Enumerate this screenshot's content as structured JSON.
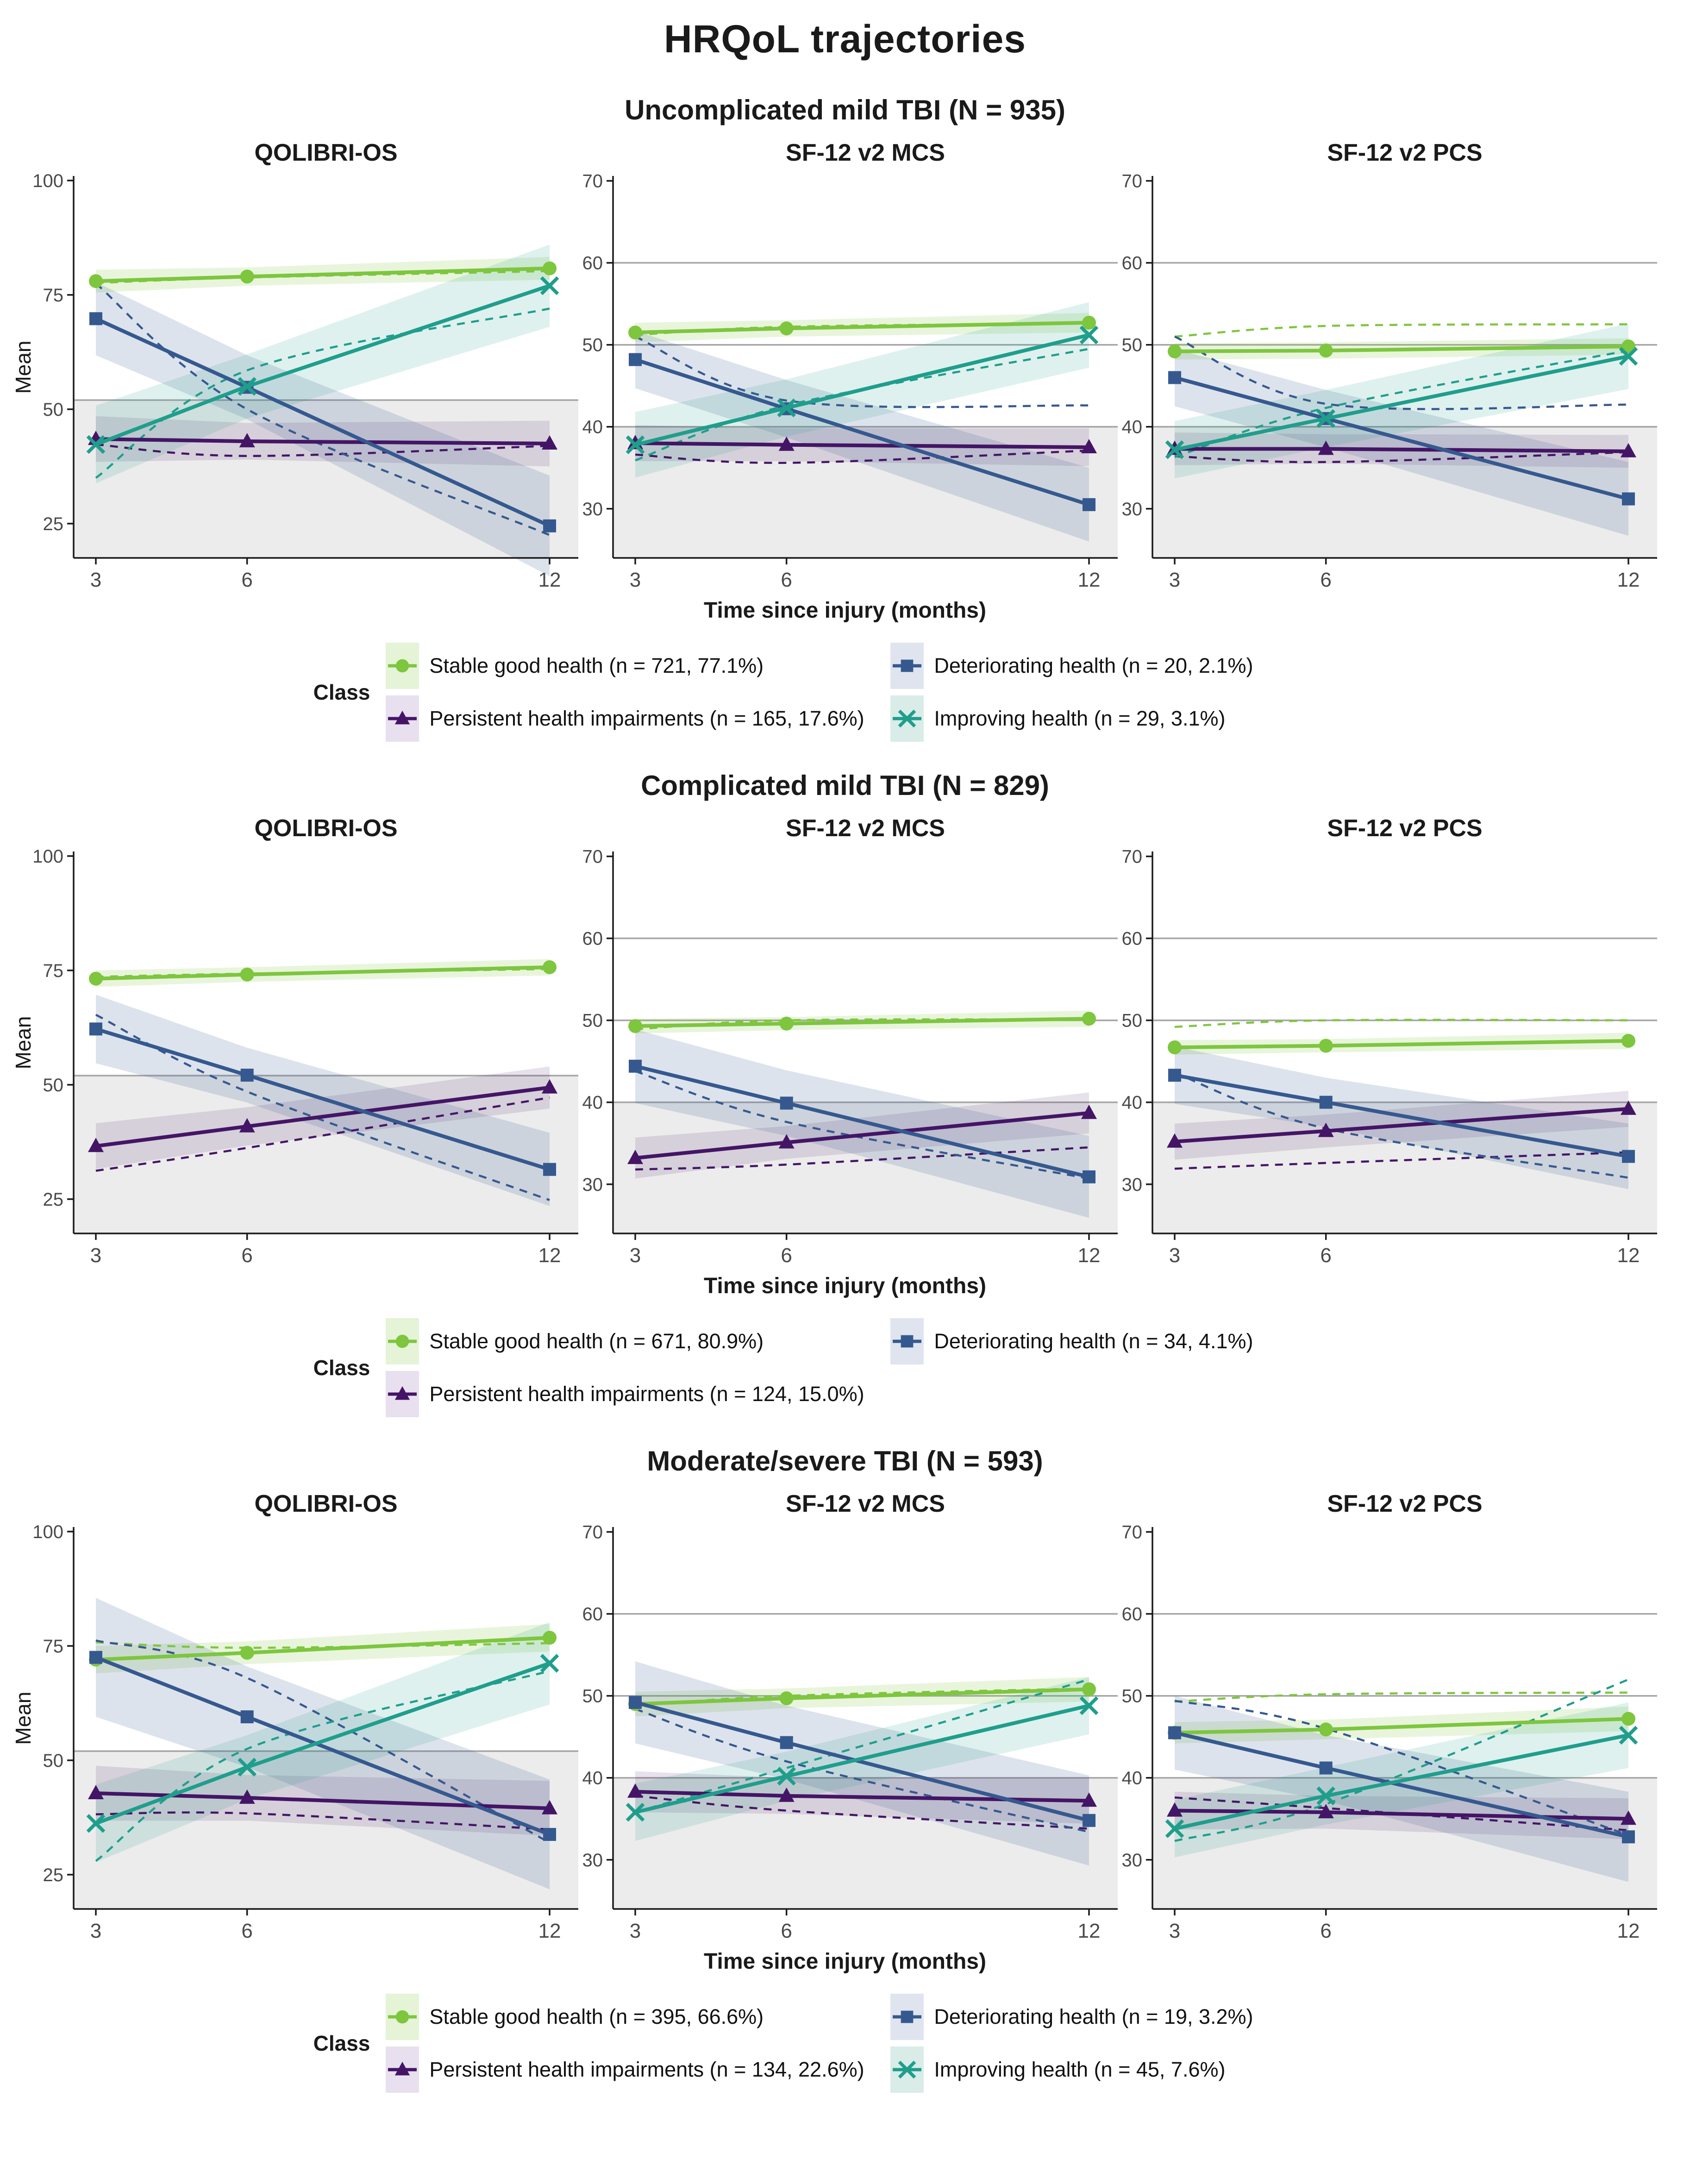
{
  "title": "HRQoL trajectories",
  "chart_data": {
    "type": "line",
    "x": [
      3,
      6,
      12
    ],
    "x_ticks": [
      3,
      6,
      12
    ],
    "xlabel": "Time since injury (months)",
    "ylabel": "Mean",
    "legend_title": "Class",
    "grid": "horizontal-reference-lines-only",
    "legend_position": "bottom-of-each-section",
    "line_styles": {
      "solid": "model estimated mean",
      "dashed": "observed mean"
    },
    "panel_axes": {
      "qolibri": {
        "yticks": [
          25,
          50,
          75,
          100
        ],
        "ylim": [
          17.5,
          101
        ],
        "ref_lines": [
          52
        ],
        "shade_below": 52
      },
      "sf": {
        "yticks": [
          30,
          40,
          50,
          60,
          70
        ],
        "ylim": [
          24,
          70.6
        ],
        "ref_lines": [
          40,
          50,
          60
        ],
        "shade_below": 40
      }
    },
    "classes": {
      "stable": {
        "label": "Stable good health",
        "color": "#7dc63e",
        "band": "rgba(125,198,62,0.18)",
        "key_bg": "#e5f3d7",
        "marker": "circle"
      },
      "persistent": {
        "label": "Persistent health impairments",
        "color": "#441566",
        "band": "rgba(68,21,102,0.13)",
        "key_bg": "#e8e0ee",
        "marker": "triangle"
      },
      "deteriorating": {
        "label": "Deteriorating health",
        "color": "#35598f",
        "band": "rgba(53,89,143,0.17)",
        "key_bg": "#dfe4ef",
        "marker": "square"
      },
      "improving": {
        "label": "Improving health",
        "color": "#1f9e8c",
        "band": "rgba(31,158,140,0.15)",
        "key_bg": "#d9ece8",
        "marker": "x"
      }
    },
    "sections": [
      {
        "title": "Uncomplicated mild TBI (N = 935)",
        "legend": [
          {
            "class": "stable",
            "label": "Stable good health (n = 721, 77.1%)"
          },
          {
            "class": "persistent",
            "label": "Persistent health impairments (n = 165, 17.6%)"
          },
          {
            "class": "deteriorating",
            "label": "Deteriorating health (n = 20, 2.1%)"
          },
          {
            "class": "improving",
            "label": "Improving health (n = 29, 3.1%)"
          }
        ],
        "panels": [
          {
            "title": "QOLIBRI-OS",
            "type": "qolibri",
            "series": [
              {
                "class": "stable",
                "solid": [
                  78,
                  79,
                  80.8
                ],
                "dashed": [
                  77.6,
                  78.8,
                  80.2
                ],
                "band": [
                  2.5,
                  2,
                  2.5
                ]
              },
              {
                "class": "persistent",
                "solid": [
                  43.5,
                  43,
                  42.5
                ],
                "dashed": [
                  42.3,
                  39.8,
                  42
                ],
                "band": [
                  5,
                  4,
                  5
                ]
              },
              {
                "class": "deteriorating",
                "solid": [
                  69.8,
                  54.8,
                  24.5
                ],
                "dashed": [
                  77.5,
                  50,
                  22.5
                ],
                "band": [
                  8,
                  7,
                  11
                ]
              },
              {
                "class": "improving",
                "solid": [
                  42.3,
                  55,
                  77
                ],
                "dashed": [
                  35,
                  58.5,
                  72
                ],
                "band": [
                  8.5,
                  7,
                  9
                ]
              }
            ]
          },
          {
            "title": "SF-12 v2 MCS",
            "type": "sf",
            "series": [
              {
                "class": "stable",
                "solid": [
                  51.5,
                  52,
                  52.7
                ],
                "dashed": [
                  51.2,
                  52.2,
                  52.6
                ],
                "band": [
                  1.2,
                  1,
                  1.2
                ]
              },
              {
                "class": "persistent",
                "solid": [
                  38,
                  37.8,
                  37.5
                ],
                "dashed": [
                  36.6,
                  35.6,
                  37.1
                ],
                "band": [
                  2.2,
                  2,
                  2.3
                ]
              },
              {
                "class": "deteriorating",
                "solid": [
                  48.2,
                  42.2,
                  30.5
                ],
                "dashed": [
                  51,
                  43.2,
                  42.6
                ],
                "band": [
                  3.5,
                  3.5,
                  4.5
                ]
              },
              {
                "class": "improving",
                "solid": [
                  37.8,
                  42.3,
                  51.2
                ],
                "dashed": [
                  35.9,
                  42.6,
                  49.5
                ],
                "band": [
                  4,
                  3.5,
                  4
                ]
              }
            ]
          },
          {
            "title": "SF-12 v2 PCS",
            "type": "sf",
            "series": [
              {
                "class": "stable",
                "solid": [
                  49.2,
                  49.3,
                  49.8
                ],
                "dashed": [
                  51,
                  52.3,
                  52.5
                ],
                "band": [
                  1,
                  1,
                  1
                ]
              },
              {
                "class": "persistent",
                "solid": [
                  37.3,
                  37.3,
                  37
                ],
                "dashed": [
                  36.4,
                  35.7,
                  36.9
                ],
                "band": [
                  2,
                  1.8,
                  2
                ]
              },
              {
                "class": "deteriorating",
                "solid": [
                  46,
                  41,
                  31.2
                ],
                "dashed": [
                  51,
                  42.8,
                  42.7
                ],
                "band": [
                  3.5,
                  3.5,
                  4.5
                ]
              },
              {
                "class": "improving",
                "solid": [
                  37.2,
                  41,
                  48.6
                ],
                "dashed": [
                  36.3,
                  42.3,
                  49.3
                ],
                "band": [
                  3.5,
                  3.5,
                  4
                ]
              }
            ]
          }
        ]
      },
      {
        "title": "Complicated mild TBI (N = 829)",
        "legend": [
          {
            "class": "stable",
            "label": "Stable good health (n = 671, 80.9%)"
          },
          {
            "class": "persistent",
            "label": "Persistent health impairments (n = 124, 15.0%)"
          },
          {
            "class": "deteriorating",
            "label": "Deteriorating health (n = 34, 4.1%)"
          }
        ],
        "panels": [
          {
            "title": "QOLIBRI-OS",
            "type": "qolibri",
            "series": [
              {
                "class": "stable",
                "solid": [
                  73.2,
                  74.1,
                  75.7
                ],
                "dashed": [
                  73.6,
                  74.3,
                  75.3
                ],
                "band": [
                  1.8,
                  1.6,
                  1.8
                ]
              },
              {
                "class": "persistent",
                "solid": [
                  36.6,
                  40.9,
                  49.4
                ],
                "dashed": [
                  31.2,
                  36.2,
                  47.2
                ],
                "band": [
                  5,
                  4.2,
                  4.6
                ]
              },
              {
                "class": "deteriorating",
                "solid": [
                  62.2,
                  52.1,
                  31.5
                ],
                "dashed": [
                  65.3,
                  48.5,
                  24.8
                ],
                "band": [
                  7.5,
                  6,
                  8
                ]
              }
            ]
          },
          {
            "title": "SF-12 v2 MCS",
            "type": "sf",
            "series": [
              {
                "class": "stable",
                "solid": [
                  49.3,
                  49.6,
                  50.2
                ],
                "dashed": [
                  48.9,
                  50,
                  50.1
                ],
                "band": [
                  0.9,
                  0.8,
                  1
                ]
              },
              {
                "class": "persistent",
                "solid": [
                  33.2,
                  35.1,
                  38.7
                ],
                "dashed": [
                  31.8,
                  32.4,
                  34.5
                ],
                "band": [
                  2.5,
                  2,
                  2.5
                ]
              },
              {
                "class": "deteriorating",
                "solid": [
                  44.4,
                  39.9,
                  30.9
                ],
                "dashed": [
                  43.8,
                  37.6,
                  30.7
                ],
                "band": [
                  4.5,
                  4,
                  5
                ]
              }
            ]
          },
          {
            "title": "SF-12 v2 PCS",
            "type": "sf",
            "series": [
              {
                "class": "stable",
                "solid": [
                  46.7,
                  46.9,
                  47.5
                ],
                "dashed": [
                  49.2,
                  50,
                  50
                ],
                "band": [
                  0.9,
                  0.8,
                  1
                ]
              },
              {
                "class": "persistent",
                "solid": [
                  35.2,
                  36.5,
                  39.2
                ],
                "dashed": [
                  31.9,
                  32.6,
                  33.9
                ],
                "band": [
                  2.2,
                  2,
                  2.2
                ]
              },
              {
                "class": "deteriorating",
                "solid": [
                  43.3,
                  40,
                  33.4
                ],
                "dashed": [
                  43.6,
                  36.8,
                  30.8
                ],
                "band": [
                  3.5,
                  3,
                  4
                ]
              }
            ]
          }
        ]
      },
      {
        "title": "Moderate/severe TBI (N = 593)",
        "legend": [
          {
            "class": "stable",
            "label": "Stable good health (n = 395, 66.6%)"
          },
          {
            "class": "persistent",
            "label": "Persistent health impairments (n = 134, 22.6%)"
          },
          {
            "class": "deteriorating",
            "label": "Deteriorating health (n = 19, 3.2%)"
          },
          {
            "class": "improving",
            "label": "Improving health (n = 45, 7.6%)"
          }
        ],
        "panels": [
          {
            "title": "QOLIBRI-OS",
            "type": "qolibri",
            "series": [
              {
                "class": "stable",
                "solid": [
                  72,
                  73.5,
                  76.8
                ],
                "dashed": [
                  75.8,
                  74.6,
                  75.6
                ],
                "band": [
                  3,
                  2.5,
                  3
                ]
              },
              {
                "class": "persistent",
                "solid": [
                  42.8,
                  41.8,
                  39.5
                ],
                "dashed": [
                  38.2,
                  38.4,
                  34.9
                ],
                "band": [
                  6,
                  5,
                  6
                ]
              },
              {
                "class": "deteriorating",
                "solid": [
                  72.5,
                  59.5,
                  33.8
                ],
                "dashed": [
                  76.2,
                  68,
                  32
                ],
                "band": [
                  13,
                  11,
                  12
                ]
              },
              {
                "class": "improving",
                "solid": [
                  36.2,
                  48.5,
                  71.2
                ],
                "dashed": [
                  28,
                  52.5,
                  69.5
                ],
                "band": [
                  8.5,
                  7,
                  9
                ]
              }
            ]
          },
          {
            "title": "SF-12 v2 MCS",
            "type": "sf",
            "series": [
              {
                "class": "stable",
                "solid": [
                  49,
                  49.7,
                  50.8
                ],
                "dashed": [
                  48.8,
                  50,
                  50.9
                ],
                "band": [
                  1.5,
                  1.2,
                  1.5
                ]
              },
              {
                "class": "persistent",
                "solid": [
                  38.3,
                  37.8,
                  37.2
                ],
                "dashed": [
                  37.8,
                  36,
                  33.8
                ],
                "band": [
                  2.5,
                  2.2,
                  2.8
                ]
              },
              {
                "class": "deteriorating",
                "solid": [
                  49.2,
                  44.3,
                  34.8
                ],
                "dashed": [
                  48.4,
                  42,
                  33.4
                ],
                "band": [
                  5,
                  4.5,
                  5.5
                ]
              },
              {
                "class": "improving",
                "solid": [
                  35.8,
                  40.2,
                  48.8
                ],
                "dashed": [
                  35.8,
                  41.2,
                  52
                ],
                "band": [
                  3.5,
                  3,
                  3.5
                ]
              }
            ]
          },
          {
            "title": "SF-12 v2 PCS",
            "type": "sf",
            "series": [
              {
                "class": "stable",
                "solid": [
                  45.5,
                  45.9,
                  47.2
                ],
                "dashed": [
                  49.3,
                  50.2,
                  50.4
                ],
                "band": [
                  1.3,
                  1.2,
                  1.5
                ]
              },
              {
                "class": "persistent",
                "solid": [
                  36,
                  35.8,
                  35
                ],
                "dashed": [
                  37.6,
                  36.3,
                  33.6
                ],
                "band": [
                  2.3,
                  2,
                  2.5
                ]
              },
              {
                "class": "deteriorating",
                "solid": [
                  45.5,
                  41.2,
                  32.8
                ],
                "dashed": [
                  49.4,
                  46,
                  33
                ],
                "band": [
                  4.5,
                  4,
                  5.5
                ]
              },
              {
                "class": "improving",
                "solid": [
                  33.8,
                  37.8,
                  45.2
                ],
                "dashed": [
                  32.3,
                  36.8,
                  52
                ],
                "band": [
                  3.5,
                  3.5,
                  4
                ]
              }
            ]
          }
        ]
      }
    ]
  }
}
